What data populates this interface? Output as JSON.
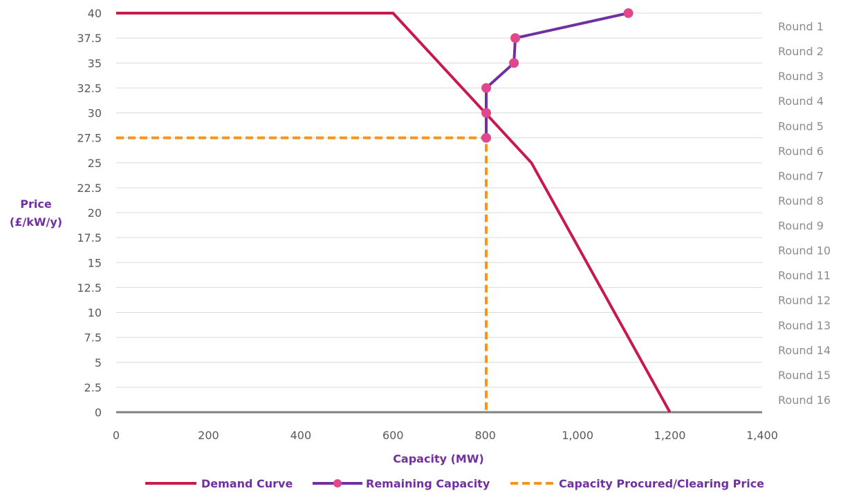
{
  "chart_data": {
    "type": "line",
    "title": "",
    "xlabel": "Capacity (MW)",
    "ylabel_lines": [
      "Price",
      "(£/kW/y)"
    ],
    "xlim": [
      0,
      1400
    ],
    "ylim": [
      0,
      40
    ],
    "x_ticks": [
      "0",
      "200",
      "400",
      "600",
      "800",
      "1,000",
      "1,200",
      "1,400"
    ],
    "y_ticks": [
      "0",
      "2.5",
      "5",
      "7.5",
      "10",
      "12.5",
      "15",
      "17.5",
      "20",
      "22.5",
      "25",
      "27.5",
      "30",
      "32.5",
      "35",
      "37.5",
      "40"
    ],
    "x_tick_values": [
      0,
      200,
      400,
      600,
      800,
      1000,
      1200,
      1400
    ],
    "y_tick_values": [
      0,
      2.5,
      5,
      7.5,
      10,
      12.5,
      15,
      17.5,
      20,
      22.5,
      25,
      27.5,
      30,
      32.5,
      35,
      37.5,
      40
    ],
    "rounds": [
      "Round 1",
      "Round 2",
      "Round 3",
      "Round 4",
      "Round 5",
      "Round 6",
      "Round 7",
      "Round 8",
      "Round 9",
      "Round 10",
      "Round 11",
      "Round 12",
      "Round 13",
      "Round 14",
      "Round 15",
      "Round 16"
    ],
    "grid": true,
    "legend_position": "bottom",
    "series": [
      {
        "name": "Demand Curve",
        "color": "#c8194b",
        "style": "solid",
        "markers": false,
        "points": [
          [
            0,
            40
          ],
          [
            600,
            40
          ],
          [
            900,
            25
          ],
          [
            1200,
            0
          ]
        ]
      },
      {
        "name": "Remaining Capacity",
        "color": "#7030a0",
        "marker_color": "#e0478c",
        "style": "solid",
        "markers": true,
        "points": [
          [
            1110,
            40
          ],
          [
            865,
            37.5
          ],
          [
            862,
            35
          ],
          [
            802,
            32.5
          ],
          [
            802,
            30
          ],
          [
            802,
            27.5
          ]
        ]
      },
      {
        "name": "Capacity Procured/Clearing Price",
        "color": "#f7941d",
        "style": "dashed",
        "markers": false,
        "points": [
          [
            0,
            27.5
          ],
          [
            802,
            27.5
          ],
          [
            802,
            0
          ]
        ]
      }
    ]
  }
}
